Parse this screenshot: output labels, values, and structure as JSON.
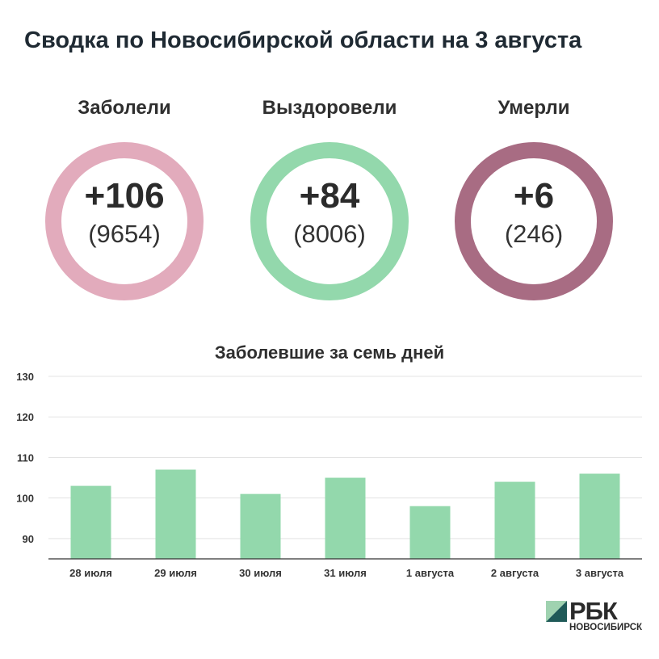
{
  "page": {
    "title": "Сводка по Новосибирской области на 3 августа"
  },
  "stats": [
    {
      "label": "Заболели",
      "delta": "+106",
      "total": "(9654)",
      "color": "#e2abbc"
    },
    {
      "label": "Выздоровели",
      "delta": "+84",
      "total": "(8006)",
      "color": "#93d8ac"
    },
    {
      "label": "Умерли",
      "delta": "+6",
      "total": "(246)",
      "color": "#a86c83"
    }
  ],
  "chart_data": {
    "type": "bar",
    "title": "Заболевшие за семь дней",
    "categories": [
      "28 июля",
      "29 июля",
      "30 июля",
      "31 июля",
      "1 августа",
      "2 августа",
      "3 августа"
    ],
    "values": [
      103,
      107,
      101,
      105,
      98,
      104,
      106
    ],
    "ylim": [
      85,
      130
    ],
    "yticks": [
      90,
      100,
      110,
      120,
      130
    ],
    "bar_color": "#93d8ac",
    "grid": true,
    "xlabel": "",
    "ylabel": ""
  },
  "brand": {
    "name": "РБК",
    "city": "НОВОСИБИРСК",
    "mark_light": "#9fd2b0",
    "mark_dark": "#1f5a58"
  }
}
